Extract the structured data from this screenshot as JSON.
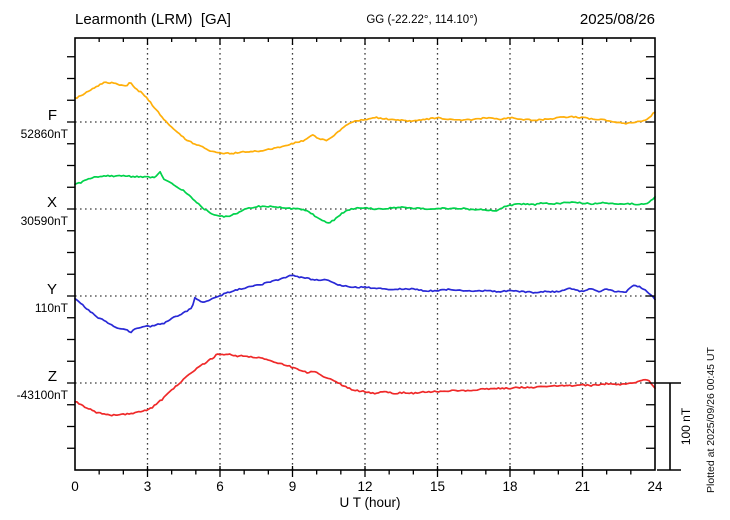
{
  "header": {
    "title": "Learmonth (LRM)  [GA]",
    "coords": "GG (-22.22°, 114.10°)",
    "date": "2025/08/26"
  },
  "footer": {
    "plotted_at": "Plotted at 2025/09/26 00:45 UT"
  },
  "chart_data": {
    "type": "line",
    "title": "Learmonth (LRM)  [GA]",
    "subtitle": "GG (-22.22°, 114.10°)",
    "date": "2025/08/26",
    "xlabel": "U T (hour)",
    "x_range": [
      0,
      24
    ],
    "x_major_ticks": [
      0,
      3,
      6,
      9,
      12,
      15,
      18,
      21,
      24
    ],
    "x_minor_step_hours": 1,
    "grid": "dotted vertical at 3h intervals, dotted horizontal at each trace baseline",
    "scale_bar_label": "100 nT",
    "scale_bar_nT": 100,
    "y_units": "nT offset from each trace baseline value",
    "series": [
      {
        "name": "F",
        "baseline_label": "52860nT",
        "baseline_value_nT": 52860,
        "color": "#FFAF0A",
        "points": [
          [
            0,
            27
          ],
          [
            0.3,
            31
          ],
          [
            0.6,
            36
          ],
          [
            0.9,
            41
          ],
          [
            1.2,
            45
          ],
          [
            1.5,
            45
          ],
          [
            1.8,
            43
          ],
          [
            2.1,
            41
          ],
          [
            2.3,
            46
          ],
          [
            2.5,
            38
          ],
          [
            2.8,
            33
          ],
          [
            3.0,
            27
          ],
          [
            3.3,
            16
          ],
          [
            3.6,
            6
          ],
          [
            3.8,
            -1
          ],
          [
            4.1,
            -9
          ],
          [
            4.4,
            -16
          ],
          [
            4.7,
            -22
          ],
          [
            5.0,
            -26
          ],
          [
            5.3,
            -29
          ],
          [
            5.6,
            -33
          ],
          [
            5.9,
            -35
          ],
          [
            6.2,
            -36
          ],
          [
            6.5,
            -36
          ],
          [
            6.8,
            -35
          ],
          [
            7.1,
            -34
          ],
          [
            7.4,
            -34
          ],
          [
            7.7,
            -33
          ],
          [
            8.0,
            -31
          ],
          [
            8.3,
            -30
          ],
          [
            8.6,
            -28
          ],
          [
            8.9,
            -26
          ],
          [
            9.2,
            -23
          ],
          [
            9.5,
            -21
          ],
          [
            9.8,
            -15
          ],
          [
            10.1,
            -19
          ],
          [
            10.4,
            -21
          ],
          [
            10.7,
            -16
          ],
          [
            11.0,
            -9
          ],
          [
            11.3,
            -2
          ],
          [
            11.6,
            1
          ],
          [
            12.0,
            3
          ],
          [
            12.5,
            5
          ],
          [
            13.0,
            3
          ],
          [
            13.5,
            2
          ],
          [
            14.0,
            1
          ],
          [
            14.5,
            3
          ],
          [
            15.0,
            5
          ],
          [
            15.5,
            3
          ],
          [
            16.0,
            2
          ],
          [
            16.5,
            3
          ],
          [
            17.0,
            5
          ],
          [
            17.5,
            3
          ],
          [
            18.0,
            5
          ],
          [
            18.5,
            3
          ],
          [
            19.0,
            2
          ],
          [
            19.5,
            3
          ],
          [
            20.0,
            5
          ],
          [
            20.5,
            6
          ],
          [
            21.0,
            5
          ],
          [
            21.5,
            3
          ],
          [
            22.0,
            2
          ],
          [
            22.4,
            0
          ],
          [
            22.8,
            -2
          ],
          [
            23.2,
            0
          ],
          [
            23.6,
            2
          ],
          [
            23.8,
            6
          ],
          [
            24.0,
            12
          ]
        ]
      },
      {
        "name": "X",
        "baseline_label": "30590nT",
        "baseline_value_nT": 30590,
        "color": "#00D24B",
        "points": [
          [
            0,
            28
          ],
          [
            0.3,
            31
          ],
          [
            0.6,
            35
          ],
          [
            0.9,
            37
          ],
          [
            1.2,
            38
          ],
          [
            1.5,
            38
          ],
          [
            1.8,
            38
          ],
          [
            2.1,
            38
          ],
          [
            2.4,
            37
          ],
          [
            2.7,
            37
          ],
          [
            3.0,
            37
          ],
          [
            3.3,
            36
          ],
          [
            3.5,
            43
          ],
          [
            3.7,
            34
          ],
          [
            4.0,
            30
          ],
          [
            4.2,
            26
          ],
          [
            4.5,
            21
          ],
          [
            4.8,
            14
          ],
          [
            5.1,
            6
          ],
          [
            5.4,
            -1
          ],
          [
            5.7,
            -6
          ],
          [
            6.0,
            -8
          ],
          [
            6.3,
            -9
          ],
          [
            6.6,
            -6
          ],
          [
            6.9,
            -2
          ],
          [
            7.2,
            1
          ],
          [
            7.5,
            3
          ],
          [
            8.0,
            3
          ],
          [
            8.4,
            2
          ],
          [
            8.8,
            1
          ],
          [
            9.2,
            0
          ],
          [
            9.6,
            -2
          ],
          [
            10.0,
            -9
          ],
          [
            10.25,
            -14
          ],
          [
            10.5,
            -16
          ],
          [
            10.75,
            -12
          ],
          [
            11.0,
            -6
          ],
          [
            11.3,
            -1
          ],
          [
            11.6,
            1
          ],
          [
            12.0,
            1
          ],
          [
            12.5,
            0
          ],
          [
            13.0,
            1
          ],
          [
            13.5,
            2
          ],
          [
            14.0,
            1
          ],
          [
            14.5,
            0
          ],
          [
            15.0,
            1
          ],
          [
            15.5,
            0
          ],
          [
            16.0,
            1
          ],
          [
            16.5,
            -1
          ],
          [
            17.0,
            -1
          ],
          [
            17.4,
            -2
          ],
          [
            17.8,
            3
          ],
          [
            18.2,
            5
          ],
          [
            18.6,
            6
          ],
          [
            19.0,
            5
          ],
          [
            19.4,
            7
          ],
          [
            19.8,
            6
          ],
          [
            20.2,
            7
          ],
          [
            20.6,
            8
          ],
          [
            21.0,
            7
          ],
          [
            21.4,
            6
          ],
          [
            21.8,
            7
          ],
          [
            22.2,
            6
          ],
          [
            22.6,
            5
          ],
          [
            23.0,
            6
          ],
          [
            23.4,
            5
          ],
          [
            23.7,
            7
          ],
          [
            24.0,
            14
          ]
        ]
      },
      {
        "name": "Y",
        "baseline_label": "110nT",
        "baseline_value_nT": 110,
        "color": "#2929D6",
        "points": [
          [
            0,
            -3
          ],
          [
            0.3,
            -10
          ],
          [
            0.6,
            -17
          ],
          [
            0.9,
            -24
          ],
          [
            1.2,
            -28
          ],
          [
            1.5,
            -33
          ],
          [
            1.8,
            -37
          ],
          [
            2.1,
            -38
          ],
          [
            2.3,
            -42
          ],
          [
            2.5,
            -38
          ],
          [
            2.8,
            -35
          ],
          [
            3.1,
            -35
          ],
          [
            3.4,
            -33
          ],
          [
            3.7,
            -31
          ],
          [
            4.0,
            -26
          ],
          [
            4.3,
            -22
          ],
          [
            4.6,
            -18
          ],
          [
            4.85,
            -13
          ],
          [
            4.95,
            -2
          ],
          [
            5.1,
            -5
          ],
          [
            5.3,
            -8
          ],
          [
            5.5,
            -5
          ],
          [
            5.7,
            -3
          ],
          [
            5.9,
            -1
          ],
          [
            6.2,
            3
          ],
          [
            6.5,
            5
          ],
          [
            6.8,
            8
          ],
          [
            7.1,
            10
          ],
          [
            7.4,
            12
          ],
          [
            7.7,
            13
          ],
          [
            8.0,
            16
          ],
          [
            8.3,
            18
          ],
          [
            8.6,
            20
          ],
          [
            8.9,
            23
          ],
          [
            9.0,
            25
          ],
          [
            9.2,
            22
          ],
          [
            9.5,
            21
          ],
          [
            9.8,
            19
          ],
          [
            10.1,
            18
          ],
          [
            10.4,
            19
          ],
          [
            10.7,
            15
          ],
          [
            11.0,
            12
          ],
          [
            11.3,
            11
          ],
          [
            11.6,
            10
          ],
          [
            12.0,
            10
          ],
          [
            12.5,
            9
          ],
          [
            13.0,
            8
          ],
          [
            13.5,
            8
          ],
          [
            14.0,
            8
          ],
          [
            14.5,
            6
          ],
          [
            15.0,
            6
          ],
          [
            15.5,
            8
          ],
          [
            16.0,
            6
          ],
          [
            16.5,
            5
          ],
          [
            17.0,
            6
          ],
          [
            17.5,
            5
          ],
          [
            18.0,
            6
          ],
          [
            18.5,
            5
          ],
          [
            19.0,
            4
          ],
          [
            19.5,
            5
          ],
          [
            20.0,
            5
          ],
          [
            20.5,
            9
          ],
          [
            21.0,
            5
          ],
          [
            21.3,
            9
          ],
          [
            21.7,
            5
          ],
          [
            22.0,
            8
          ],
          [
            22.4,
            5
          ],
          [
            22.8,
            5
          ],
          [
            23.1,
            13
          ],
          [
            23.4,
            10
          ],
          [
            23.7,
            5
          ],
          [
            24.0,
            -4
          ]
        ]
      },
      {
        "name": "Z",
        "baseline_label": "-43100nT",
        "baseline_value_nT": -43100,
        "color": "#EF2929",
        "points": [
          [
            0,
            -21
          ],
          [
            0.3,
            -26
          ],
          [
            0.6,
            -30
          ],
          [
            0.9,
            -34
          ],
          [
            1.2,
            -35
          ],
          [
            1.5,
            -37
          ],
          [
            1.8,
            -36
          ],
          [
            2.1,
            -36
          ],
          [
            2.4,
            -35
          ],
          [
            2.7,
            -33
          ],
          [
            3.0,
            -31
          ],
          [
            3.2,
            -28
          ],
          [
            3.4,
            -23
          ],
          [
            3.6,
            -19
          ],
          [
            3.8,
            -13
          ],
          [
            4.0,
            -8
          ],
          [
            4.2,
            -3
          ],
          [
            4.4,
            2
          ],
          [
            4.6,
            7
          ],
          [
            4.8,
            12
          ],
          [
            5.0,
            16
          ],
          [
            5.2,
            20
          ],
          [
            5.4,
            23
          ],
          [
            5.6,
            27
          ],
          [
            5.8,
            31
          ],
          [
            5.9,
            34
          ],
          [
            6.0,
            33
          ],
          [
            6.2,
            33
          ],
          [
            6.4,
            33
          ],
          [
            6.7,
            31
          ],
          [
            7.0,
            31
          ],
          [
            7.3,
            30
          ],
          [
            7.6,
            29
          ],
          [
            7.9,
            27
          ],
          [
            8.2,
            24
          ],
          [
            8.5,
            22
          ],
          [
            8.8,
            20
          ],
          [
            9.1,
            17
          ],
          [
            9.4,
            14
          ],
          [
            9.6,
            12
          ],
          [
            9.9,
            14
          ],
          [
            10.2,
            8
          ],
          [
            10.5,
            5
          ],
          [
            10.8,
            1
          ],
          [
            11.1,
            -3
          ],
          [
            11.4,
            -7
          ],
          [
            11.7,
            -9
          ],
          [
            12.0,
            -10
          ],
          [
            12.4,
            -12
          ],
          [
            12.8,
            -10
          ],
          [
            13.2,
            -12
          ],
          [
            13.6,
            -11
          ],
          [
            14.0,
            -12
          ],
          [
            14.5,
            -10
          ],
          [
            15.0,
            -10
          ],
          [
            15.5,
            -9
          ],
          [
            16.0,
            -9
          ],
          [
            16.5,
            -8
          ],
          [
            17.0,
            -7
          ],
          [
            17.5,
            -6
          ],
          [
            18.0,
            -6
          ],
          [
            18.5,
            -5
          ],
          [
            19.0,
            -5
          ],
          [
            19.5,
            -4
          ],
          [
            20.0,
            -3
          ],
          [
            20.5,
            -3
          ],
          [
            21.0,
            -2
          ],
          [
            21.3,
            -3
          ],
          [
            21.7,
            -2
          ],
          [
            22.0,
            -1
          ],
          [
            22.4,
            -2
          ],
          [
            22.8,
            -1
          ],
          [
            23.2,
            1
          ],
          [
            23.5,
            3
          ],
          [
            23.7,
            4
          ],
          [
            24.0,
            -6
          ]
        ]
      }
    ]
  }
}
